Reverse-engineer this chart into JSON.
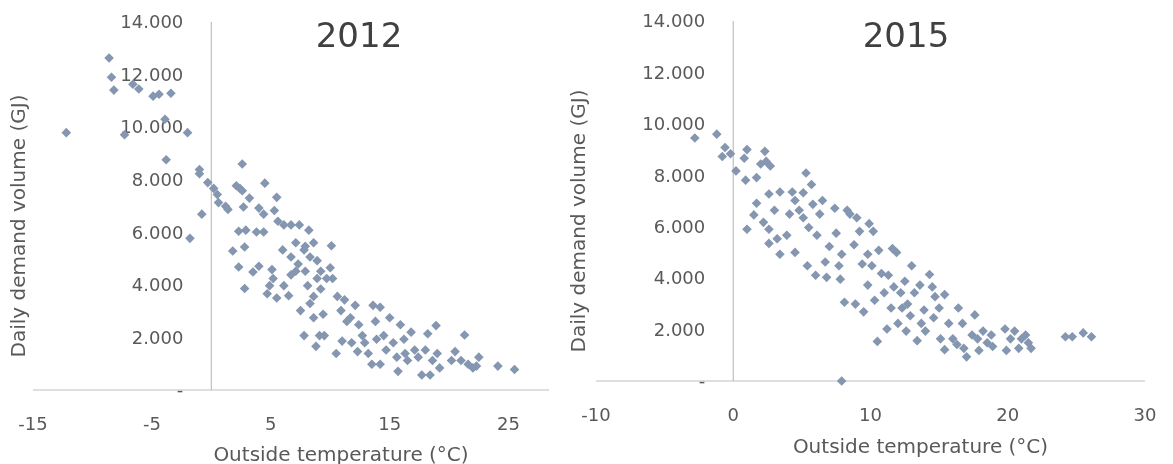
{
  "chart_data": [
    {
      "type": "scatter",
      "title": "2012",
      "xlabel": "Outside temperature (°C)",
      "ylabel": "Daily demand volume (GJ)",
      "xlim": [
        -15,
        28.4
      ],
      "ylim": [
        0,
        14000
      ],
      "xticks": [
        -15,
        -5,
        5,
        15,
        25
      ],
      "yticks": [
        {
          "value": 0,
          "label": "-"
        },
        {
          "value": 2000,
          "label": "2.000"
        },
        {
          "value": 4000,
          "label": "4.000"
        },
        {
          "value": 6000,
          "label": "6.000"
        },
        {
          "value": 8000,
          "label": "8.000"
        },
        {
          "value": 10000,
          "label": "10.000"
        },
        {
          "value": 12000,
          "label": "12.000"
        },
        {
          "value": 14000,
          "label": "14.000"
        }
      ],
      "grid": false,
      "marker": "diamond",
      "series": [
        {
          "color": "#8496b0",
          "x": [
            -12.2,
            -8.6,
            -8.4,
            -8.2,
            -7.3,
            -6.6,
            -6.1,
            -4.9,
            -4.4,
            -3.4,
            -3.9,
            -3.8,
            -2.0,
            -1.8,
            -1.0,
            -1.0,
            -0.8,
            -0.3,
            0.2,
            0.5,
            0.6,
            1.2,
            1.4,
            1.8,
            2.3,
            2.3,
            2.1,
            2.4,
            2.6,
            2.6,
            2.7,
            2.8,
            2.8,
            2.9,
            3.2,
            3.5,
            4.0,
            4.0,
            4.5,
            4.4,
            4.4,
            3.8,
            4.7,
            4.9,
            5.1,
            5.2,
            5.5,
            5.5,
            5.3,
            5.6,
            6.1,
            6.1,
            6.0,
            6.5,
            6.7,
            6.7,
            6.7,
            7.4,
            7.1,
            7.3,
            7.5,
            7.8,
            7.9,
            7.9,
            8.1,
            8.2,
            8.3,
            8.6,
            8.8,
            8.9,
            9.1,
            9.2,
            9.4,
            9.5,
            9.7,
            10.0,
            10.1,
            10.2,
            10.5,
            10.6,
            10.9,
            11.0,
            11.2,
            11.4,
            11.7,
            11.8,
            12.1,
            12.3,
            12.4,
            12.7,
            12.9,
            13.2,
            13.5,
            13.6,
            13.8,
            13.9,
            14.2,
            14.2,
            14.5,
            14.7,
            15.0,
            15.3,
            15.6,
            15.7,
            15.9,
            16.2,
            16.3,
            16.5,
            16.8,
            17.1,
            17.4,
            17.7,
            18.0,
            18.2,
            18.4,
            18.6,
            18.9,
            19.2,
            19.0,
            20.2,
            20.5,
            21.0,
            21.3,
            21.6,
            22.0,
            22.5,
            22.3,
            24.1,
            25.5,
            7.8,
            8.3,
            8.6,
            7.1,
            8.9,
            9.2,
            8.6
          ],
          "values": [
            9790,
            12630,
            11900,
            11410,
            9710,
            11630,
            11450,
            11180,
            11250,
            11290,
            10300,
            8760,
            9790,
            5770,
            8390,
            8230,
            6690,
            7890,
            7670,
            7440,
            7130,
            6990,
            6870,
            5290,
            6040,
            4680,
            7770,
            7670,
            8600,
            7580,
            6960,
            3860,
            5440,
            6080,
            7300,
            4490,
            4710,
            6920,
            7870,
            6690,
            6010,
            6010,
            3660,
            3970,
            4580,
            4240,
            3500,
            7330,
            6830,
            6420,
            6280,
            3970,
            5330,
            3590,
            6280,
            5060,
            4380,
            6280,
            5600,
            4790,
            3020,
            2070,
            5470,
            4520,
            3970,
            6080,
            3290,
            2750,
            1660,
            4920,
            2070,
            3840,
            2880,
            2070,
            4240,
            4650,
            5490,
            4240,
            1390,
            3560,
            3020,
            1860,
            3430,
            2610,
            2750,
            1800,
            3220,
            1460,
            2480,
            2070,
            1800,
            1390,
            980,
            3220,
            2610,
            1930,
            3150,
            980,
            2070,
            1520,
            2750,
            1800,
            1250,
            710,
            2480,
            1930,
            1390,
            1120,
            2200,
            1520,
            1250,
            570,
            1520,
            2140,
            570,
            1120,
            2450,
            840,
            1390,
            1120,
            1460,
            1120,
            2090,
            980,
            840,
            1250,
            910,
            910,
            780,
            5330,
            5060,
            5600,
            4520,
            4240,
            4520,
            3560
          ]
        }
      ]
    },
    {
      "type": "scatter",
      "title": "2015",
      "xlabel": "Outside temperature (°C)",
      "ylabel": "Daily demand volume (GJ)",
      "xlim": [
        -10,
        30
      ],
      "ylim": [
        0,
        14000
      ],
      "xticks": [
        -10,
        0,
        10,
        20,
        30
      ],
      "yticks": [
        {
          "value": 0,
          "label": "-"
        },
        {
          "value": 2000,
          "label": "2.000"
        },
        {
          "value": 4000,
          "label": "4.000"
        },
        {
          "value": 6000,
          "label": "6.000"
        },
        {
          "value": 8000,
          "label": "8.000"
        },
        {
          "value": 10000,
          "label": "10.000"
        },
        {
          "value": 12000,
          "label": "12.000"
        },
        {
          "value": 14000,
          "label": "14.000"
        }
      ],
      "grid": false,
      "marker": "diamond",
      "series": [
        {
          "color": "#8496b0",
          "x": [
            -2.8,
            -1.2,
            -0.6,
            -0.8,
            -0.2,
            0.2,
            0.8,
            1.0,
            0.9,
            1.0,
            1.7,
            1.7,
            1.5,
            2.0,
            2.3,
            2.4,
            2.7,
            2.6,
            2.2,
            2.6,
            2.6,
            3.0,
            3.4,
            3.2,
            3.4,
            3.9,
            4.3,
            4.1,
            4.5,
            4.5,
            4.8,
            5.1,
            5.3,
            5.1,
            5.4,
            5.5,
            5.7,
            5.8,
            6.0,
            6.1,
            6.3,
            6.5,
            6.7,
            6.8,
            7.0,
            7.4,
            7.5,
            7.7,
            7.8,
            7.9,
            8.1,
            8.3,
            8.5,
            8.8,
            8.9,
            9.0,
            9.2,
            9.4,
            9.5,
            9.8,
            9.9,
            9.8,
            10.1,
            10.2,
            10.3,
            10.5,
            10.6,
            10.8,
            11.0,
            11.2,
            11.3,
            11.5,
            11.6,
            11.7,
            11.9,
            12.0,
            12.2,
            12.3,
            12.5,
            12.6,
            12.7,
            12.9,
            13.0,
            13.2,
            13.4,
            13.6,
            13.7,
            13.9,
            14.0,
            14.3,
            14.5,
            14.6,
            14.7,
            15.0,
            15.1,
            15.4,
            15.4,
            15.7,
            16.0,
            16.3,
            16.4,
            16.7,
            16.8,
            17.0,
            17.4,
            17.6,
            17.8,
            17.9,
            18.2,
            18.5,
            18.8,
            18.9,
            19.8,
            19.9,
            20.2,
            20.5,
            20.8,
            21.0,
            21.3,
            21.5,
            21.7,
            24.2,
            24.7,
            25.5,
            26.1,
            7.9
          ],
          "values": [
            9450,
            9600,
            9080,
            8730,
            8840,
            8170,
            8660,
            9000,
            7810,
            5900,
            7910,
            6910,
            6460,
            8440,
            8930,
            8540,
            8360,
            7270,
            6170,
            5900,
            5350,
            6640,
            7350,
            5530,
            4930,
            5670,
            7350,
            6490,
            7020,
            5000,
            6640,
            7320,
            8090,
            6350,
            4480,
            5970,
            7640,
            6870,
            4110,
            5670,
            6490,
            7020,
            4630,
            4030,
            5230,
            6720,
            5750,
            4480,
            3960,
            4930,
            3060,
            6640,
            6490,
            5300,
            2990,
            6350,
            5820,
            4550,
            2690,
            3730,
            6120,
            4930,
            4480,
            5820,
            3140,
            1540,
            5080,
            4180,
            3430,
            2020,
            4110,
            2840,
            5150,
            3660,
            5000,
            2240,
            3430,
            2840,
            3880,
            1940,
            2990,
            2540,
            4480,
            3430,
            1570,
            3730,
            2240,
            2760,
            1940,
            4140,
            3660,
            2460,
            3280,
            2840,
            1640,
            1220,
            3360,
            2240,
            1640,
            1420,
            2840,
            2240,
            1270,
            940,
            1790,
            2570,
            1640,
            1190,
            1940,
            1490,
            1790,
            1340,
            2020,
            1190,
            1640,
            1940,
            1270,
            1640,
            1790,
            1490,
            1270,
            1720,
            1720,
            1870,
            1720,
            0
          ]
        }
      ]
    }
  ]
}
